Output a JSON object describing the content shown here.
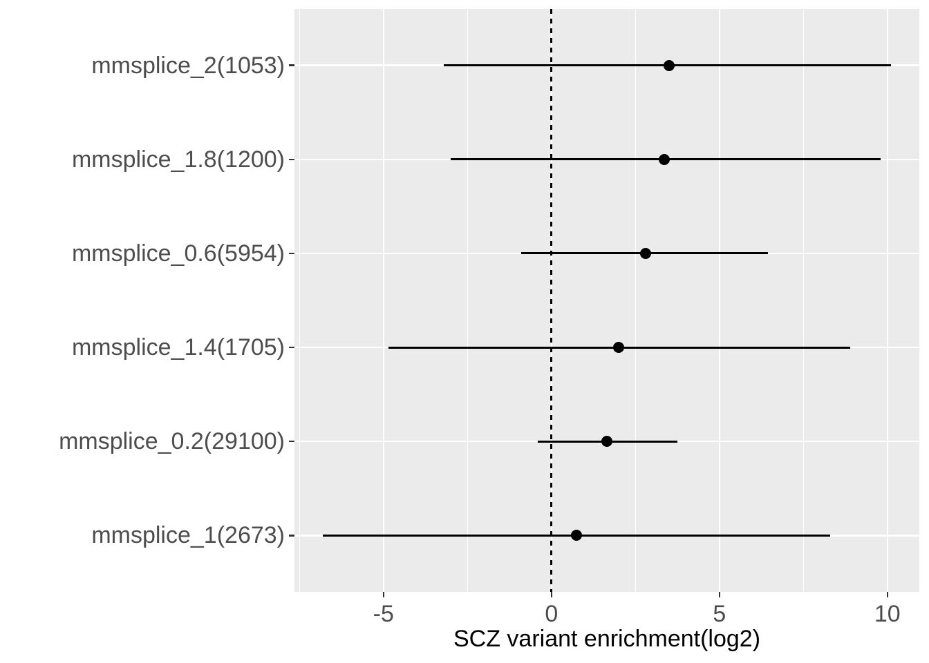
{
  "figure": {
    "background": "#FFFFFF",
    "panel_background": "#EBEBEB",
    "gridline_color": "#FFFFFF",
    "axis_tick_color": "#333333",
    "tick_label_color": "#4D4D4D",
    "axis_title_color": "#000000",
    "data_color": "#000000"
  },
  "chart_data": {
    "type": "scatter",
    "subtype": "forest-plot",
    "title": "",
    "xlabel": "SCZ variant enrichment(log2)",
    "ylabel": "",
    "xlim": [
      -7.65,
      10.95
    ],
    "x_ticks": [
      {
        "value": -5,
        "label": "-5"
      },
      {
        "value": 0,
        "label": "0"
      },
      {
        "value": 5,
        "label": "5"
      },
      {
        "value": 10,
        "label": "10"
      }
    ],
    "x_minor_gridlines": [
      -7.5,
      -2.5,
      2.5,
      7.5
    ],
    "reference_line": {
      "x": 0,
      "style": "dashed",
      "color": "#000000"
    },
    "grid": true,
    "legend": "none",
    "categories_top_to_bottom": [
      "mmsplice_2(1053)",
      "mmsplice_1.8(1200)",
      "mmsplice_0.6(5954)",
      "mmsplice_1.4(1705)",
      "mmsplice_0.2(29100)",
      "mmsplice_1(2673)"
    ],
    "rows": [
      {
        "label": "mmsplice_2(1053)",
        "group": "mmsplice_2",
        "variant_count": 1053,
        "estimate": 3.5,
        "ci_low": -3.2,
        "ci_high": 10.1
      },
      {
        "label": "mmsplice_1.8(1200)",
        "group": "mmsplice_1.8",
        "variant_count": 1200,
        "estimate": 3.35,
        "ci_low": -3.0,
        "ci_high": 9.8
      },
      {
        "label": "mmsplice_0.6(5954)",
        "group": "mmsplice_0.6",
        "variant_count": 5954,
        "estimate": 2.8,
        "ci_low": -0.9,
        "ci_high": 6.45
      },
      {
        "label": "mmsplice_1.4(1705)",
        "group": "mmsplice_1.4",
        "variant_count": 1705,
        "estimate": 2.0,
        "ci_low": -4.85,
        "ci_high": 8.9
      },
      {
        "label": "mmsplice_0.2(29100)",
        "group": "mmsplice_0.2",
        "variant_count": 29100,
        "estimate": 1.65,
        "ci_low": -0.4,
        "ci_high": 3.75
      },
      {
        "label": "mmsplice_1(2673)",
        "group": "mmsplice_1",
        "variant_count": 2673,
        "estimate": 0.75,
        "ci_low": -6.8,
        "ci_high": 8.3
      }
    ]
  }
}
